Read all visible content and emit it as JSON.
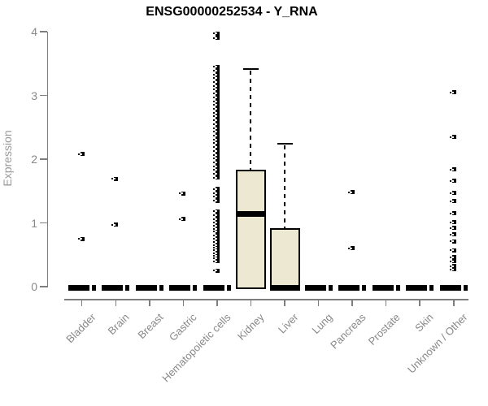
{
  "title": "ENSG00000252534 - Y_RNA",
  "y_axis": {
    "label": "Expression"
  },
  "colors": {
    "box_fill": "#EDE8D1",
    "box_border": "#000000",
    "axis": "#7E7E7E",
    "tick_text": "#888888",
    "ylabel_text": "#9A9A9A",
    "title_text": "#000000"
  },
  "chart_data": {
    "type": "boxplot",
    "title": "ENSG00000252534 - Y_RNA",
    "xlabel": "",
    "ylabel": "Expression",
    "ylim": [
      0,
      4
    ],
    "y_ticks": [
      0,
      1,
      2,
      3,
      4
    ],
    "grid": "off",
    "legend": "none",
    "categories": [
      "Bladder",
      "Brain",
      "Breast",
      "Gastric",
      "Hematopoietic cells",
      "Kidney",
      "Liver",
      "Lung",
      "Pancreas",
      "Prostate",
      "Skin",
      "Unknown / Other"
    ],
    "boxes": [
      {
        "category": "Bladder",
        "collapsed": true,
        "q1": 0,
        "median": 0,
        "q3": 0,
        "whisker_low": 0,
        "whisker_high": 0,
        "outliers": [
          2.08,
          0.75
        ]
      },
      {
        "category": "Brain",
        "collapsed": true,
        "q1": 0,
        "median": 0,
        "q3": 0,
        "whisker_low": 0,
        "whisker_high": 0,
        "outliers": [
          1.69,
          0.97
        ]
      },
      {
        "category": "Breast",
        "collapsed": true,
        "q1": 0,
        "median": 0,
        "q3": 0,
        "whisker_low": 0,
        "whisker_high": 0,
        "outliers": []
      },
      {
        "category": "Gastric",
        "collapsed": true,
        "q1": 0,
        "median": 0,
        "q3": 0,
        "whisker_low": 0,
        "whisker_high": 0,
        "outliers": [
          1.46,
          1.06
        ]
      },
      {
        "category": "Hematopoietic cells",
        "collapsed": true,
        "q1": 0,
        "median": 0,
        "q3": 0,
        "whisker_low": 0,
        "whisker_high": 0,
        "outliers": [
          3.97,
          3.9,
          3.45,
          3.39,
          3.33,
          3.27,
          3.21,
          3.15,
          3.09,
          3.03,
          2.97,
          2.91,
          2.85,
          2.79,
          2.73,
          2.67,
          2.61,
          2.55,
          2.49,
          2.43,
          2.37,
          2.31,
          2.25,
          2.19,
          2.13,
          2.07,
          2.01,
          1.95,
          1.89,
          1.83,
          1.77,
          1.71,
          1.53,
          1.47,
          1.41,
          1.35,
          1.18,
          1.12,
          1.06,
          1.01,
          0.96,
          0.91,
          0.86,
          0.8,
          0.75,
          0.7,
          0.65,
          0.61,
          0.57,
          0.52,
          0.48,
          0.44,
          0.4,
          0.25
        ]
      },
      {
        "category": "Kidney",
        "collapsed": false,
        "q1": 0,
        "median": 1.14,
        "q3": 1.82,
        "whisker_low": 0,
        "whisker_high": 3.41,
        "outliers": []
      },
      {
        "category": "Liver",
        "collapsed": false,
        "q1": 0,
        "median": 0,
        "q3": 0.91,
        "whisker_low": 0,
        "whisker_high": 2.24,
        "outliers": []
      },
      {
        "category": "Lung",
        "collapsed": true,
        "q1": 0,
        "median": 0,
        "q3": 0,
        "whisker_low": 0,
        "whisker_high": 0,
        "outliers": []
      },
      {
        "category": "Pancreas",
        "collapsed": true,
        "q1": 0,
        "median": 0,
        "q3": 0,
        "whisker_low": 0,
        "whisker_high": 0,
        "outliers": [
          1.48,
          0.6
        ]
      },
      {
        "category": "Prostate",
        "collapsed": true,
        "q1": 0,
        "median": 0,
        "q3": 0,
        "whisker_low": 0,
        "whisker_high": 0,
        "outliers": []
      },
      {
        "category": "Skin",
        "collapsed": true,
        "q1": 0,
        "median": 0,
        "q3": 0,
        "whisker_low": 0,
        "whisker_high": 0,
        "outliers": []
      },
      {
        "category": "Unknown / Other",
        "collapsed": true,
        "q1": 0,
        "median": 0,
        "q3": 0,
        "whisker_low": 0,
        "whisker_high": 0,
        "outliers": [
          3.05,
          2.35,
          1.84,
          1.66,
          1.47,
          1.34,
          1.15,
          1.01,
          0.92,
          0.82,
          0.71,
          0.57,
          0.46,
          0.4,
          0.32,
          0.27
        ]
      }
    ]
  }
}
